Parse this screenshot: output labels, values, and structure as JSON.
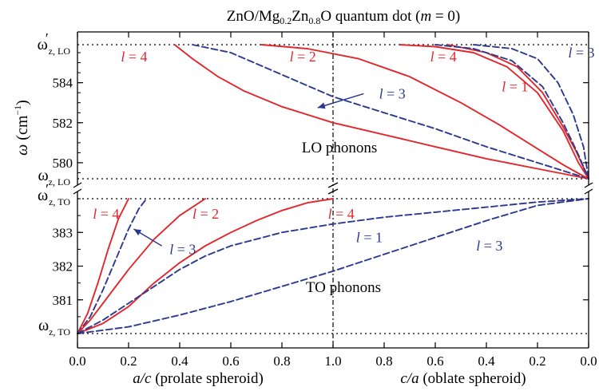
{
  "chart_data": {
    "type": "line",
    "title": {
      "main": "ZnO/Mg",
      "sub1": "0.2",
      "mid": "Zn",
      "sub2": "0.8",
      "tail": "O quantum dot (",
      "m": "m",
      "eq": " = 0)"
    },
    "xlabel_left": {
      "var": "a/c",
      "text": " (prolate spheroid)"
    },
    "xlabel_right": {
      "var": "c/a",
      "text": " (oblate spheroid)"
    },
    "ylabel": {
      "sym": "ω",
      "text": " (cm",
      "sup": "−1",
      "close": ")"
    },
    "x_ticks": [
      "0.0",
      "0.2",
      "0.4",
      "0.6",
      "0.8",
      "1.0",
      "0.8",
      "0.6",
      "0.4",
      "0.2",
      "0.0"
    ],
    "x_range": [
      0,
      2
    ],
    "lo_panel": {
      "ylim": [
        579.2,
        585.9
      ],
      "y_ticks": [
        580,
        582,
        584
      ],
      "y_tick_labels": [
        "580",
        "582",
        "584"
      ],
      "ref_lines": {
        "top": 585.9,
        "bottom": 579.2
      },
      "top_label": {
        "sym": "ω",
        "prime": "′",
        "sub": "z, LO"
      },
      "bottom_label": {
        "sym": "ω",
        "sub": "z, LO"
      },
      "annotation": "LO phonons"
    },
    "to_panel": {
      "ylim": [
        380.0,
        384.0
      ],
      "y_ticks": [
        381,
        382,
        383
      ],
      "y_tick_labels": [
        "381",
        "382",
        "383"
      ],
      "ref_lines": {
        "top": 384.0,
        "bottom": 380.0
      },
      "top_label": {
        "sym": "ω",
        "prime": "′",
        "sub": "z, TO"
      },
      "bottom_label": {
        "sym": "ω",
        "sub": "z, TO"
      },
      "annotation": "TO phonons"
    },
    "series": [
      {
        "panel": "lo",
        "l": "4",
        "color": "#e3262c",
        "dash": false,
        "x": [
          0.38,
          0.45,
          0.55,
          0.65,
          0.8,
          1.0,
          1.2,
          1.4,
          1.6,
          1.8,
          2.0
        ],
        "y": [
          585.9,
          585.2,
          584.3,
          583.6,
          582.8,
          582.0,
          581.4,
          580.8,
          580.2,
          579.7,
          579.2
        ]
      },
      {
        "panel": "lo",
        "l": "3",
        "color": "#2b3990",
        "dash": true,
        "x": [
          0.45,
          0.6,
          0.8,
          1.0,
          1.2,
          1.4,
          1.6,
          1.8,
          1.95,
          2.0
        ],
        "y": [
          585.9,
          585.5,
          584.4,
          583.3,
          582.5,
          581.7,
          580.8,
          580.0,
          579.4,
          579.2
        ]
      },
      {
        "panel": "lo",
        "l": "2",
        "color": "#e3262c",
        "dash": false,
        "x": [
          0.72,
          0.9,
          1.1,
          1.3,
          1.5,
          1.65,
          1.8,
          1.9,
          1.97,
          2.0
        ],
        "y": [
          585.9,
          585.7,
          585.2,
          584.3,
          583.0,
          581.9,
          580.7,
          579.9,
          579.4,
          579.2
        ]
      },
      {
        "panel": "lo",
        "l": "4",
        "color": "#e3262c",
        "dash": false,
        "x": [
          1.26,
          1.4,
          1.55,
          1.68,
          1.8,
          1.9,
          1.96,
          2.0
        ],
        "y": [
          585.9,
          585.8,
          585.5,
          584.8,
          583.5,
          581.6,
          580.0,
          579.2
        ]
      },
      {
        "panel": "lo",
        "l": "1",
        "color": "#e3262c",
        "dash": false,
        "x": [
          1.45,
          1.6,
          1.72,
          1.82,
          1.9,
          1.95,
          2.0
        ],
        "y": [
          585.9,
          585.5,
          584.8,
          583.5,
          581.8,
          580.6,
          579.2
        ]
      },
      {
        "panel": "lo",
        "l": "3",
        "color": "#2b3990",
        "dash": true,
        "x": [
          1.4,
          1.55,
          1.7,
          1.82,
          1.9,
          1.96,
          2.0
        ],
        "y": [
          585.9,
          585.7,
          585.1,
          583.8,
          582.0,
          580.4,
          579.2
        ]
      },
      {
        "panel": "lo",
        "l": "3",
        "color": "#2b3990",
        "dash": true,
        "x": [
          1.55,
          1.7,
          1.8,
          1.88,
          1.94,
          1.98,
          2.0
        ],
        "y": [
          585.9,
          585.7,
          585.2,
          584.0,
          582.4,
          580.8,
          579.2
        ]
      },
      {
        "panel": "to",
        "l": "4",
        "color": "#e3262c",
        "dash": false,
        "x": [
          0.0,
          0.04,
          0.08,
          0.12,
          0.16,
          0.2
        ],
        "y": [
          380.0,
          380.6,
          381.5,
          382.5,
          383.4,
          384.0
        ]
      },
      {
        "panel": "to",
        "l": "3",
        "color": "#2b3990",
        "dash": true,
        "x": [
          0.0,
          0.05,
          0.1,
          0.15,
          0.2,
          0.24,
          0.27
        ],
        "y": [
          380.0,
          380.5,
          381.3,
          382.2,
          383.1,
          383.7,
          384.0
        ]
      },
      {
        "panel": "to",
        "l": "2",
        "color": "#e3262c",
        "dash": false,
        "x": [
          0.0,
          0.05,
          0.1,
          0.2,
          0.3,
          0.4,
          0.5
        ],
        "y": [
          380.0,
          380.4,
          380.9,
          381.9,
          382.8,
          383.5,
          384.0
        ]
      },
      {
        "panel": "to",
        "l": "4",
        "color": "#e3262c",
        "dash": false,
        "x": [
          0.0,
          0.1,
          0.2,
          0.3,
          0.4,
          0.5,
          0.6,
          0.7,
          0.8,
          0.9,
          1.0
        ],
        "y": [
          380.0,
          380.3,
          380.8,
          381.5,
          382.1,
          382.6,
          383.0,
          383.35,
          383.65,
          383.88,
          384.0
        ]
      },
      {
        "panel": "to",
        "l": "1",
        "color": "#2b3990",
        "dash": true,
        "x": [
          0.0,
          0.1,
          0.2,
          0.3,
          0.4,
          0.5,
          0.6,
          0.8,
          1.0,
          1.2,
          1.4,
          1.6,
          1.8,
          2.0
        ],
        "y": [
          380.0,
          380.4,
          380.9,
          381.4,
          381.9,
          382.3,
          382.6,
          383.0,
          383.25,
          383.45,
          383.6,
          383.75,
          383.9,
          384.0
        ]
      },
      {
        "panel": "to",
        "l": "3",
        "color": "#2b3990",
        "dash": true,
        "x": [
          0.0,
          0.2,
          0.4,
          0.6,
          0.8,
          1.0,
          1.2,
          1.4,
          1.6,
          1.8,
          2.0
        ],
        "y": [
          380.0,
          380.2,
          380.55,
          380.95,
          381.4,
          381.85,
          382.35,
          382.85,
          383.35,
          383.8,
          384.0
        ]
      }
    ],
    "labels": [
      {
        "text": "4",
        "color": "#e3262c",
        "panel": "lo",
        "x": 0.17,
        "y": 585.3
      },
      {
        "text": "2",
        "color": "#e3262c",
        "panel": "lo",
        "x": 0.83,
        "y": 585.3
      },
      {
        "text": "4",
        "color": "#e3262c",
        "panel": "lo",
        "x": 1.38,
        "y": 585.3
      },
      {
        "text": "3",
        "color": "#2b3990",
        "panel": "lo",
        "x": 1.92,
        "y": 585.5
      },
      {
        "text": "1",
        "color": "#e3262c",
        "panel": "lo",
        "x": 1.66,
        "y": 583.8
      },
      {
        "text": "3",
        "color": "#2b3990",
        "panel": "lo",
        "x": 1.18,
        "y": 583.45
      },
      {
        "text": "4",
        "color": "#e3262c",
        "panel": "to",
        "x": 0.06,
        "y": 383.55
      },
      {
        "text": "2",
        "color": "#e3262c",
        "panel": "to",
        "x": 0.45,
        "y": 383.55
      },
      {
        "text": "3",
        "color": "#2b3990",
        "panel": "to",
        "x": 0.36,
        "y": 382.5
      },
      {
        "text": "4",
        "color": "#e3262c",
        "panel": "to",
        "x": 0.98,
        "y": 383.55
      },
      {
        "text": "1",
        "color": "#2b3990",
        "panel": "to",
        "x": 1.09,
        "y": 382.85
      },
      {
        "text": "3",
        "color": "#2b3990",
        "panel": "to",
        "x": 1.56,
        "y": 382.6
      }
    ],
    "label_prefix": "l",
    "label_eq": " = ",
    "arrows": [
      {
        "panel": "lo",
        "from": [
          1.12,
          583.45
        ],
        "to": [
          0.94,
          582.75
        ],
        "color": "#2b3990"
      },
      {
        "panel": "to",
        "from": [
          0.33,
          382.6
        ],
        "to": [
          0.22,
          383.1
        ],
        "color": "#2b3990"
      }
    ],
    "grid": false,
    "legend": "none"
  }
}
